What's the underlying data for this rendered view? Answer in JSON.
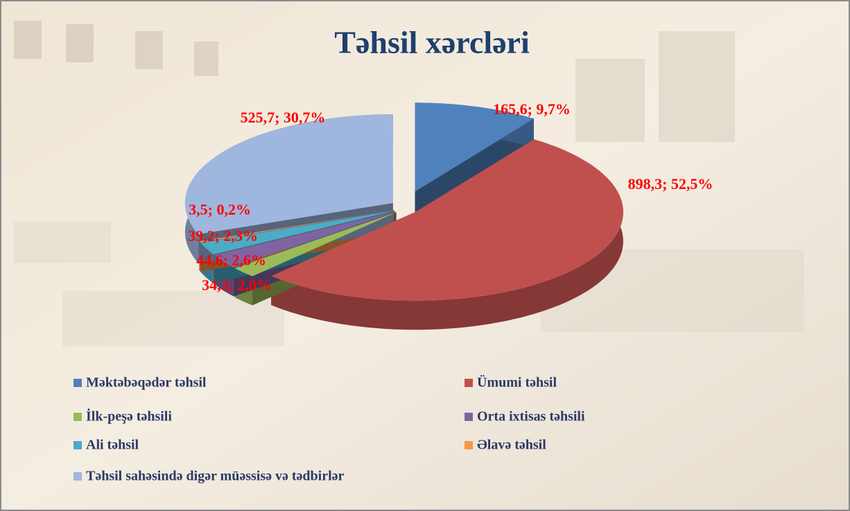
{
  "chart_data": {
    "type": "pie",
    "title": "Təhsil xərcləri",
    "categories": [
      "Məktəbəqədər təhsil",
      "Ümumi təhsil",
      "İlk-peşə təhsili",
      "Orta ixtisas təhsili",
      "Ali təhsil",
      "Əlavə təhsil",
      "Təhsil sahəsində digər müəssisə və tədbirlər"
    ],
    "values": [
      165.6,
      898.3,
      34.3,
      44.6,
      39.2,
      3.5,
      525.7
    ],
    "value_labels": [
      "165,6; 9,7%",
      "898,3; 52,5%",
      "34,3; 2,0%",
      "44,6; 2,6%",
      "39,2; 2,3%",
      "3,5; 0,2%",
      "525,7; 30,7%"
    ],
    "colors": [
      "#4f81bd",
      "#c0504d",
      "#9bbb59",
      "#8064a2",
      "#4bacc6",
      "#f79646",
      "#9fb6df"
    ]
  }
}
